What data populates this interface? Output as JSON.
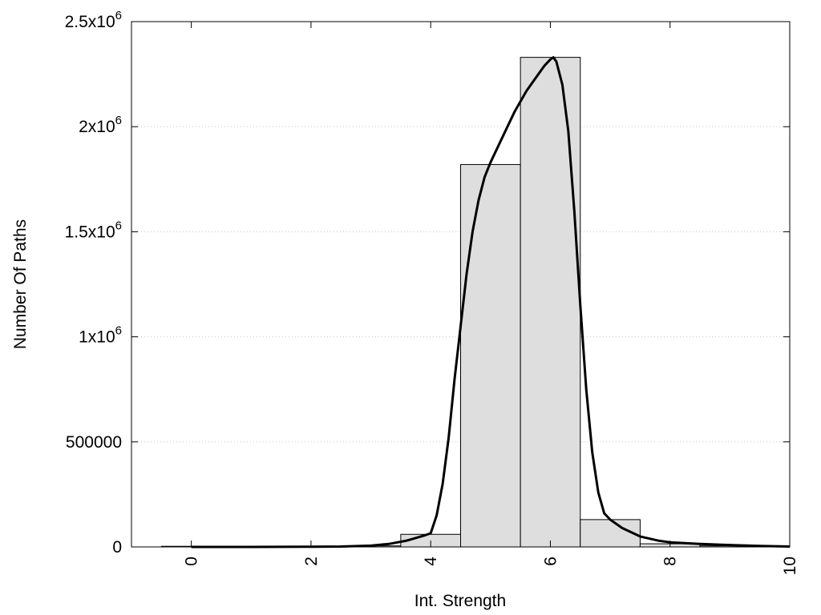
{
  "chart_data": {
    "type": "bar",
    "title": "",
    "xlabel": "Int. Strength",
    "ylabel": "Number Of Paths",
    "xlim": [
      -1,
      10
    ],
    "ylim": [
      0,
      2500000
    ],
    "grid": true,
    "legend": "none",
    "bar_color": "#dedede",
    "x_ticks": [
      0,
      2,
      4,
      6,
      8,
      10
    ],
    "y_ticks": [
      {
        "value": 0,
        "label": "0"
      },
      {
        "value": 500000,
        "label": "500000"
      },
      {
        "value": 1000000,
        "mantissa": "1x10",
        "exponent": "6"
      },
      {
        "value": 1500000,
        "mantissa": "1.5x10",
        "exponent": "6"
      },
      {
        "value": 2000000,
        "mantissa": "2x10",
        "exponent": "6"
      },
      {
        "value": 2500000,
        "mantissa": "2.5x10",
        "exponent": "6"
      }
    ],
    "bars": {
      "x": [
        0,
        1,
        2,
        3,
        4,
        5,
        6,
        7,
        8,
        9
      ],
      "values": [
        3000,
        1000,
        2000,
        5000,
        60000,
        1820000,
        2330000,
        130000,
        15000,
        5000
      ]
    },
    "curve": {
      "x": [
        0,
        1,
        2,
        2.5,
        3,
        3.3,
        3.6,
        3.9,
        4,
        4.1,
        4.2,
        4.3,
        4.4,
        4.5,
        4.6,
        4.7,
        4.8,
        4.9,
        5,
        5.2,
        5.4,
        5.6,
        5.8,
        5.9,
        6,
        6.05,
        6.1,
        6.2,
        6.3,
        6.4,
        6.5,
        6.6,
        6.7,
        6.8,
        6.9,
        7,
        7.2,
        7.5,
        7.8,
        8,
        8.5,
        9,
        9.5,
        10
      ],
      "y": [
        0,
        0,
        1000,
        2000,
        6000,
        14000,
        30000,
        55000,
        65000,
        150000,
        300000,
        520000,
        800000,
        1050000,
        1300000,
        1500000,
        1650000,
        1760000,
        1830000,
        1950000,
        2070000,
        2170000,
        2250000,
        2290000,
        2320000,
        2330000,
        2310000,
        2200000,
        1980000,
        1600000,
        1150000,
        750000,
        450000,
        260000,
        160000,
        130000,
        90000,
        50000,
        30000,
        22000,
        14000,
        9000,
        5000,
        2000
      ]
    }
  }
}
